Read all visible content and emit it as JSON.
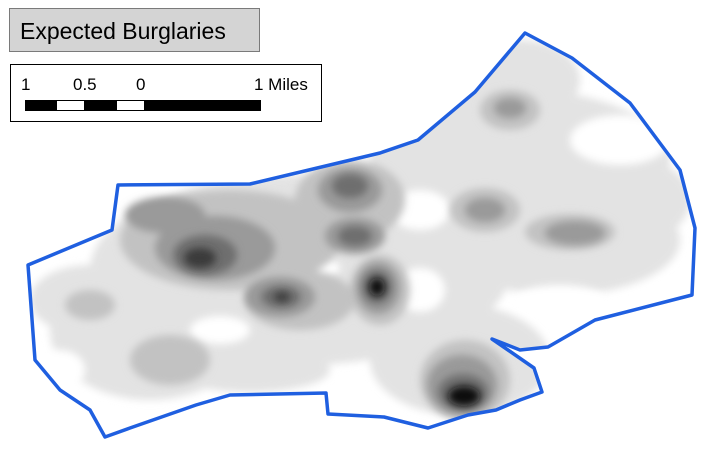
{
  "title": "Expected Burglaries",
  "scale_bar": {
    "labels": [
      "1",
      "0.5",
      "0",
      "1 Miles"
    ],
    "colors": [
      "#000000",
      "#ffffff",
      "#000000",
      "#ffffff",
      "#000000"
    ]
  },
  "map": {
    "boundary_color": "#1f5fe0",
    "density_colors": [
      "#e3e3e3",
      "#c2c2c2",
      "#9a9a9a",
      "#6e6e6e",
      "#3a3a3a",
      "#0c0c0c"
    ]
  }
}
